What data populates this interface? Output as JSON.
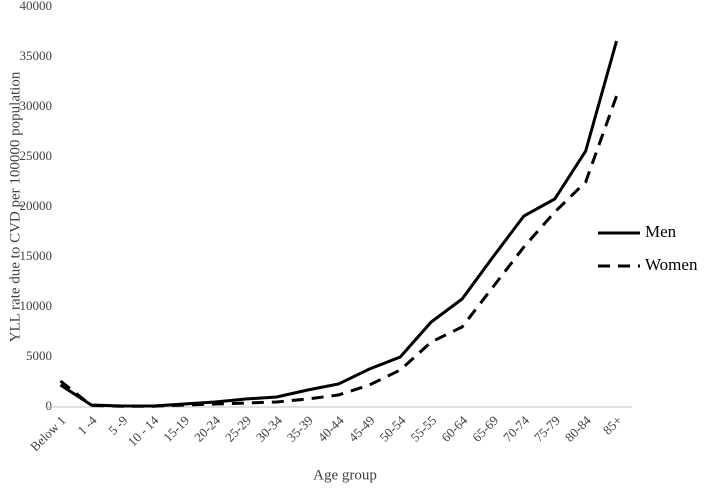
{
  "chart_data": {
    "type": "line",
    "x_label": "Age group",
    "y_label": "YLL rate  due to CVD per 100000 population",
    "categories": [
      "Below 1",
      "1 -4",
      "5 -9",
      "10 - 14",
      "15-19",
      "20-24",
      "25-29",
      "30-34",
      "35-39",
      "40-44",
      "45-49",
      "50-54",
      "55-55",
      "60-64",
      "65-69",
      "70-74",
      "75-79",
      "80-84",
      "85+"
    ],
    "series": [
      {
        "name": "Men",
        "color": "#000000",
        "dash": "solid",
        "values": [
          2200,
          200,
          100,
          100,
          300,
          500,
          800,
          1000,
          1700,
          2300,
          3800,
          5000,
          8500,
          10800,
          15000,
          19100,
          20800,
          25600,
          36600
        ]
      },
      {
        "name": "Women",
        "color": "#000000",
        "dash": "dashed",
        "values": [
          2600,
          150,
          80,
          80,
          200,
          300,
          400,
          500,
          800,
          1200,
          2200,
          3700,
          6500,
          8000,
          12000,
          16000,
          19500,
          22500,
          31100
        ]
      }
    ],
    "ylim": [
      0,
      40000
    ],
    "yticks": [
      0,
      5000,
      10000,
      15000,
      20000,
      25000,
      30000,
      35000,
      40000
    ],
    "grid": false,
    "legend": "right"
  }
}
